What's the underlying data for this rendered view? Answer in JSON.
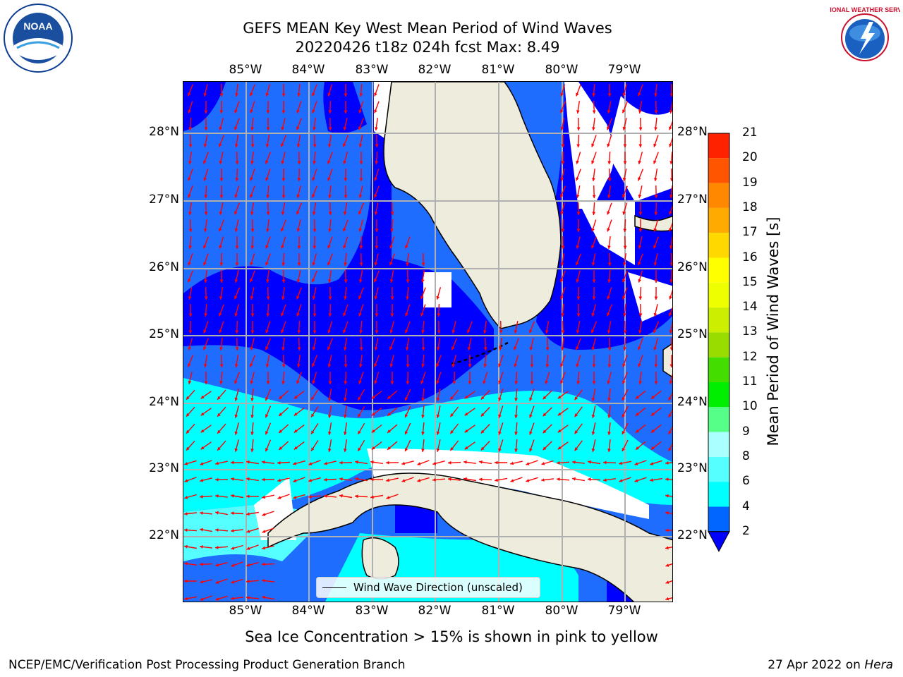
{
  "title": {
    "line1": "GEFS MEAN Key West Mean Period of Wind Waves",
    "line2": "20220426 t18z 024h fcst   Max: 8.49"
  },
  "axes": {
    "lon_labels": [
      "85°W",
      "84°W",
      "83°W",
      "82°W",
      "81°W",
      "80°W",
      "79°W"
    ],
    "lat_labels": [
      "28°N",
      "27°N",
      "26°N",
      "25°N",
      "24°N",
      "23°N",
      "22°N"
    ]
  },
  "legend": {
    "label": "Wind Wave Direction (unscaled)"
  },
  "colorbar": {
    "label": "Mean Period of Wind Waves [s]",
    "ticks": [
      "21",
      "20",
      "19",
      "18",
      "17",
      "16",
      "15",
      "14",
      "13",
      "12",
      "11",
      "10",
      "9",
      "8",
      "6",
      "4",
      "2"
    ],
    "colors": {
      "under": "#0000ff",
      "b2_4": "#0066ff",
      "b4_6": "#00ffff",
      "b6_8": "#55ffff",
      "b8_9": "#aaffff",
      "b9_10": "#55ff88",
      "b10_11": "#00ee00",
      "b11_12": "#44dd00",
      "b12_13": "#99dd00",
      "b13_14": "#ccee00",
      "b14_15": "#eeff00",
      "b15_16": "#ffff00",
      "b16_17": "#ffd800",
      "b17_18": "#ffaa00",
      "b18_19": "#ff8800",
      "b19_20": "#ff5500",
      "b20_21": "#ff2200"
    }
  },
  "map_colors": {
    "land": "#eeecdc",
    "dark_blue": "#0000ff",
    "mid_blue": "#1f6dff",
    "cyan": "#00ffff",
    "light_cyan": "#55ffff",
    "arrow": "#ff0000",
    "grid": "#b0b0b0"
  },
  "footer": {
    "note": "Sea Ice Concentration > 15% is shown in pink to yellow",
    "left": "NCEP/EMC/Verification Post Processing Product Generation Branch",
    "right_prefix": "27 Apr 2022 on ",
    "right_host": "Hera"
  },
  "logos": {
    "noaa_text": "NOAA",
    "nws_text": "NATIONAL WEATHER SERVICE"
  }
}
